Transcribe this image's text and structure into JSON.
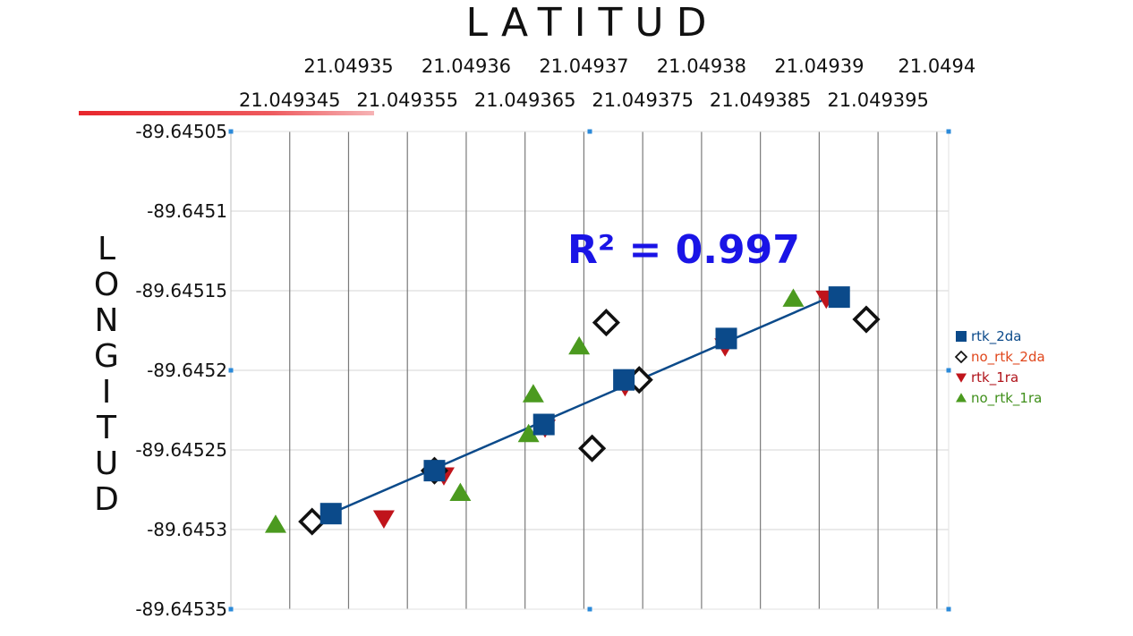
{
  "chart_data": {
    "type": "scatter",
    "title": "LATITUD",
    "xlabel": "LATITUD",
    "ylabel": "LONGITUD",
    "x_top_ticks": [
      "21.04935",
      "21.04936",
      "21.04937",
      "21.04938",
      "21.04939",
      "21.0494"
    ],
    "x_bottom_ticks": [
      "21.049345",
      "21.049355",
      "21.049365",
      "21.049375",
      "21.049385",
      "21.049395"
    ],
    "y_ticks": [
      "-89.64505",
      "-89.6451",
      "-89.64515",
      "-89.6452",
      "-89.64525",
      "-89.6453",
      "-89.64535"
    ],
    "xlim": [
      21.04934,
      21.049401
    ],
    "ylim": [
      -89.64535,
      -89.64505
    ],
    "annotation": "R² = 0.997",
    "legend_position": "right",
    "grid": true,
    "series": [
      {
        "name": "rtk_2da",
        "marker": "square",
        "color": "#0b4a8a",
        "points": [
          [
            21.0493485,
            -89.64529
          ],
          [
            21.0493573,
            -89.645263
          ],
          [
            21.0493666,
            -89.645234
          ],
          [
            21.0493734,
            -89.645206
          ],
          [
            21.0493821,
            -89.64518
          ],
          [
            21.0493917,
            -89.645154
          ]
        ]
      },
      {
        "name": "no_rtk_2da",
        "marker": "diamond-open",
        "color": "#111111",
        "points": [
          [
            21.0493469,
            -89.645295
          ],
          [
            21.0493573,
            -89.645263
          ],
          [
            21.0493707,
            -89.645249
          ],
          [
            21.0493719,
            -89.64517
          ],
          [
            21.0493747,
            -89.645206
          ],
          [
            21.049394,
            -89.645168
          ]
        ]
      },
      {
        "name": "rtk_1ra",
        "marker": "triangle-down",
        "color": "#c0141b",
        "points": [
          [
            21.049353,
            -89.645293
          ],
          [
            21.0493581,
            -89.645266
          ],
          [
            21.0493667,
            -89.645236
          ],
          [
            21.0493735,
            -89.64521
          ],
          [
            21.049382,
            -89.645185
          ],
          [
            21.0493906,
            -89.645155
          ]
        ]
      },
      {
        "name": "no_rtk_1ra",
        "marker": "triangle-up",
        "color": "#4b9a1f",
        "points": [
          [
            21.0493438,
            -89.645297
          ],
          [
            21.0493595,
            -89.645277
          ],
          [
            21.0493653,
            -89.64524
          ],
          [
            21.0493657,
            -89.645215
          ],
          [
            21.0493696,
            -89.645185
          ],
          [
            21.0493878,
            -89.645155
          ]
        ]
      }
    ],
    "trendline": {
      "color": "#0b4a8a",
      "points": [
        [
          21.0493469,
          -89.645295
        ],
        [
          21.0493906,
          -89.645155
        ]
      ]
    }
  },
  "colors": {
    "r2_text": "#1a14e6",
    "legend_rtk_2da": "#0b4a8a",
    "legend_no_rtk_2da": "#e0461b",
    "legend_rtk_1ra": "#b0141b",
    "legend_no_rtk_1ra": "#3f8f1a",
    "grid": "#d4d4d4",
    "vgrid": "#7a7a7a",
    "handle": "#2b8ad9"
  }
}
